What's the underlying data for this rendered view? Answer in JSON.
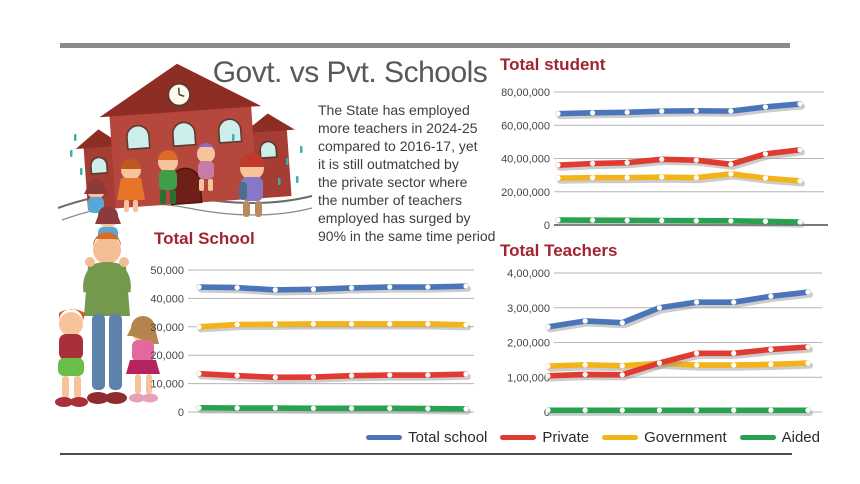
{
  "header": {
    "title": "Govt. vs Pvt. Schools",
    "description": "The State has employed\nmore teachers in 2024-25\ncompared to 2016-17, yet\nit is still outmatched by\nthe private sector where\nthe number of teachers\nemployed has surged by\n90% in the same time period"
  },
  "colors": {
    "total_school": "#4a76b9",
    "private": "#e03b30",
    "government": "#f3b31b",
    "aided": "#2aa150",
    "chart_title": "#a32431",
    "grid": "#b5b5b5",
    "accent_bar": "#8a8a8a"
  },
  "legend": [
    {
      "label": "Total school",
      "color": "#4a76b9"
    },
    {
      "label": "Private",
      "color": "#e03b30"
    },
    {
      "label": "Government",
      "color": "#f3b31b"
    },
    {
      "label": "Aided",
      "color": "#2aa150"
    }
  ],
  "chart_data": [
    {
      "type": "line",
      "id": "students",
      "title": "Total student",
      "ylim": [
        0,
        8000000
      ],
      "grid": true,
      "yticks": [
        {
          "v": 8000000,
          "label": "80,00,000"
        },
        {
          "v": 6000000,
          "label": "60,00,000"
        },
        {
          "v": 4000000,
          "label": "40,00,000"
        },
        {
          "v": 2000000,
          "label": "20,00,000"
        },
        {
          "v": 0,
          "label": "0"
        }
      ],
      "series": [
        {
          "name": "Total school",
          "color": "#4a76b9",
          "values": [
            6700000,
            6750000,
            6780000,
            6850000,
            6870000,
            6850000,
            7100000,
            7280000
          ]
        },
        {
          "name": "Government",
          "color": "#f3b31b",
          "values": [
            2820000,
            2850000,
            2850000,
            2880000,
            2850000,
            3070000,
            2820000,
            2650000
          ]
        },
        {
          "name": "Private",
          "color": "#e03b30",
          "values": [
            3600000,
            3700000,
            3750000,
            3950000,
            3900000,
            3650000,
            4280000,
            4520000
          ]
        },
        {
          "name": "Aided",
          "color": "#2aa150",
          "values": [
            300000,
            290000,
            280000,
            270000,
            260000,
            250000,
            220000,
            180000
          ]
        }
      ]
    },
    {
      "type": "line",
      "id": "schools",
      "title": "Total School",
      "ylim": [
        0,
        50000
      ],
      "grid": true,
      "yticks": [
        {
          "v": 50000,
          "label": "50,000"
        },
        {
          "v": 40000,
          "label": "40,000"
        },
        {
          "v": 30000,
          "label": "30,000"
        },
        {
          "v": 20000,
          "label": "20,000"
        },
        {
          "v": 10000,
          "label": "10,000"
        },
        {
          "v": 0,
          "label": "0"
        }
      ],
      "series": [
        {
          "name": "Total school",
          "color": "#4a76b9",
          "values": [
            44000,
            43800,
            43000,
            43200,
            43700,
            44000,
            44000,
            44300
          ]
        },
        {
          "name": "Government",
          "color": "#f3b31b",
          "values": [
            30000,
            30800,
            30900,
            31000,
            31000,
            31000,
            31000,
            30700
          ]
        },
        {
          "name": "Private",
          "color": "#e03b30",
          "values": [
            13500,
            12800,
            12200,
            12300,
            12800,
            13000,
            13000,
            13300
          ]
        },
        {
          "name": "Aided",
          "color": "#2aa150",
          "values": [
            1500,
            1400,
            1400,
            1300,
            1300,
            1300,
            1200,
            1100
          ]
        }
      ]
    },
    {
      "type": "line",
      "id": "teachers",
      "title": "Total Teachers",
      "ylim": [
        0,
        400000
      ],
      "grid": true,
      "yticks": [
        {
          "v": 400000,
          "label": "4,00,000"
        },
        {
          "v": 300000,
          "label": "3,00,000"
        },
        {
          "v": 200000,
          "label": "2,00,000"
        },
        {
          "v": 100000,
          "label": "1,00,000"
        },
        {
          "v": 0,
          "label": "0"
        }
      ],
      "series": [
        {
          "name": "Total school",
          "color": "#4a76b9",
          "values": [
            245000,
            262000,
            257000,
            300000,
            316000,
            316000,
            333000,
            345000
          ]
        },
        {
          "name": "Government",
          "color": "#f3b31b",
          "values": [
            132000,
            136000,
            133000,
            140000,
            135000,
            135000,
            137000,
            141000
          ]
        },
        {
          "name": "Private",
          "color": "#e03b30",
          "values": [
            104000,
            108000,
            107000,
            141000,
            169000,
            169000,
            180000,
            187000
          ]
        },
        {
          "name": "Aided",
          "color": "#2aa150",
          "values": [
            5000,
            5000,
            5000,
            5000,
            5000,
            5000,
            5000,
            5000
          ]
        }
      ]
    }
  ]
}
